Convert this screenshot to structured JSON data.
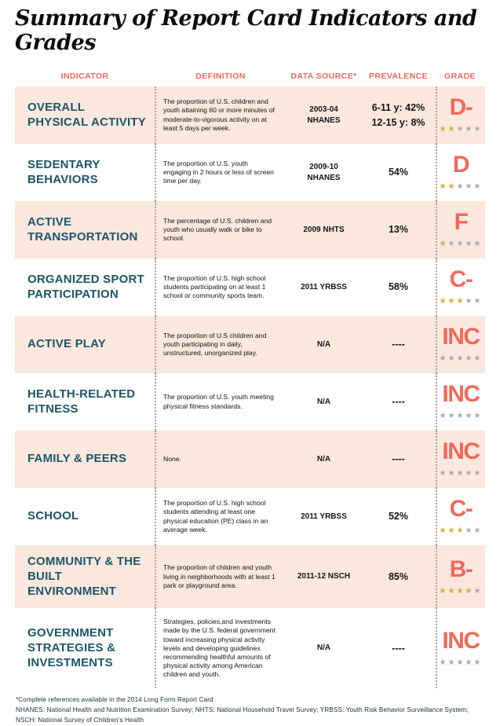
{
  "page": {
    "title": "Summary of Report Card Indicators and Grades",
    "footnotes": [
      "*Complete references available in the 2014 Long Form Report Card",
      "NHANES: National Health and Nutrition Examination Survey; NHTS: National Household Travel Survey; YRBSS: Youth Risk Behavior Surveillance System; NSCH: National Survey of Children's Health"
    ]
  },
  "table": {
    "headers": [
      "INDICATOR",
      "DEFINITION",
      "DATA SOURCE*",
      "PREVALENCE",
      "GRADE"
    ],
    "rows": [
      {
        "indicator": "OVERALL PHYSICAL ACTIVITY",
        "definition": "The proportion of U.S. children and youth attaining 60 or more minutes of moderate-to-vigorous activity on at least 5 days per week.",
        "data_source": "2003-04\nNHANES",
        "prevalence": "6-11 y: 42%\n12-15 y: 8%",
        "grade": "D-",
        "stars": 1.5
      },
      {
        "indicator": "SEDENTARY BEHAVIORS",
        "definition": "The proportion of U.S. youth engaging in 2 hours or less of screen time per day.",
        "data_source": "2009-10\nNHANES",
        "prevalence": "54%",
        "grade": "D",
        "stars": 2
      },
      {
        "indicator": "ACTIVE TRANSPORTATION",
        "definition": "The percentage of U.S. children and youth who usually walk or bike to school.",
        "data_source": "2009 NHTS",
        "prevalence": "13%",
        "grade": "F",
        "stars": 0.5
      },
      {
        "indicator": "ORGANIZED SPORT PARTICIPATION",
        "definition": "The proportion of U.S. high school students participating on at least 1 school or community sports team.",
        "data_source": "2011 YRBSS",
        "prevalence": "58%",
        "grade": "C-",
        "stars": 2.5
      },
      {
        "indicator": "ACTIVE PLAY",
        "definition": "The proportion of U.S children and youth participating in daily, unstructured, unorganized play.",
        "data_source": "N/A",
        "prevalence": "----",
        "grade": "INC",
        "stars": 0
      },
      {
        "indicator": "HEALTH-RELATED FITNESS",
        "definition": "The proportion of U.S. youth meeting physical fitness standards.",
        "data_source": "N/A",
        "prevalence": "----",
        "grade": "INC",
        "stars": 0
      },
      {
        "indicator": "FAMILY & PEERS",
        "definition": "None.",
        "data_source": "N/A",
        "prevalence": "----",
        "grade": "INC",
        "stars": 0
      },
      {
        "indicator": "SCHOOL",
        "definition": "The proportion of U.S. high school students attending at least one physical education (PE) class in an average week.",
        "data_source": "2011 YRBSS",
        "prevalence": "52%",
        "grade": "C-",
        "stars": 2.5
      },
      {
        "indicator": "COMMUNITY & THE BUILT ENVIRONMENT",
        "definition": "The proportion of children and youth living in neighborhoods with at least 1 park or playground area.",
        "data_source": "2011-12 NSCH",
        "prevalence": "85%",
        "grade": "B-",
        "stars": 3.5
      },
      {
        "indicator": "GOVERNMENT STRATEGIES & INVESTMENTS",
        "definition": "Strategies, policies,and investments made by the U.S. federal government toward increasing physical activity levels and developing guidelines recommending healthful amounts of physical activity among American children and youth.",
        "data_source": "N/A",
        "prevalence": "----",
        "grade": "INC",
        "stars": 0
      }
    ]
  },
  "colors": {
    "coral": "#f1695b",
    "teal": "#1e5568",
    "pink": "#fae8df",
    "gold": "#dcaf3a",
    "star-gray": "#a8a8a8"
  }
}
